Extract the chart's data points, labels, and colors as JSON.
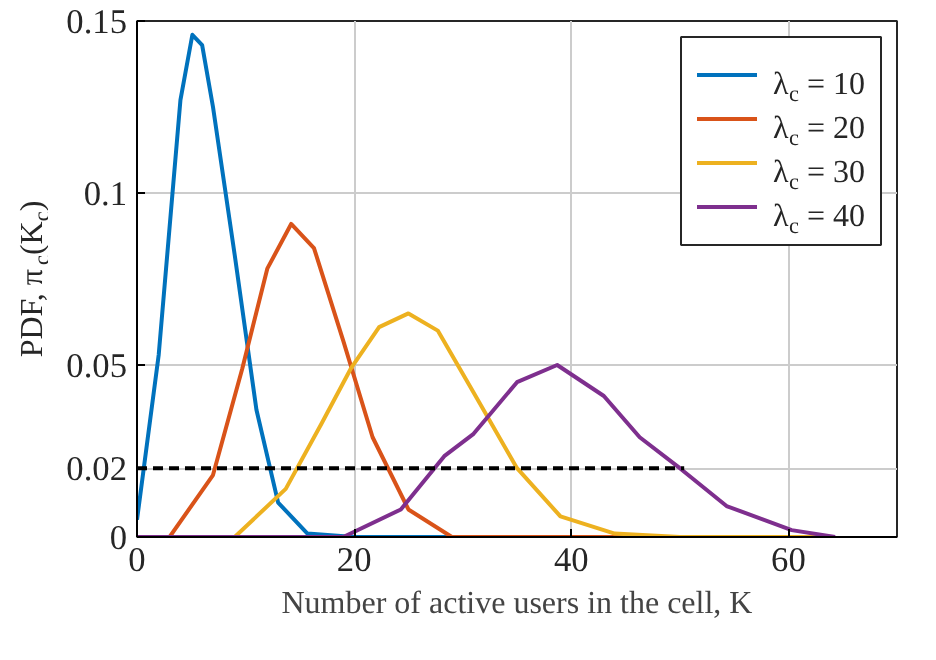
{
  "chart_data": {
    "type": "line",
    "xlabel": "Number of active users in the cell, K",
    "ylabel": "PDF, π$_{c}$(K$_{c}$)",
    "xlim": [
      0,
      70
    ],
    "ylim": [
      0,
      0.15
    ],
    "xticks": [
      0,
      20,
      40,
      60
    ],
    "yticks": [
      0,
      0.02,
      0.05,
      0.1,
      0.15
    ],
    "grid": true,
    "legend": "top right",
    "line_style": "solid",
    "marker": "none",
    "series": [
      {
        "name": "λ$_{c}$ = 10",
        "color": "#0072bd",
        "x": [
          0,
          2,
          4,
          5.1,
          6,
          7,
          9,
          11,
          13,
          15.7,
          20,
          30,
          64
        ],
        "values": [
          0.005,
          0.053,
          0.127,
          0.146,
          0.143,
          0.125,
          0.082,
          0.037,
          0.01,
          0.001,
          0,
          0,
          0
        ]
      },
      {
        "name": "λ$_{c}$ = 20",
        "color": "#d95319",
        "x": [
          0,
          3,
          7,
          9.7,
          12,
          14.2,
          16.3,
          19,
          21.7,
          25,
          29,
          40,
          64
        ],
        "values": [
          0,
          0,
          0.018,
          0.049,
          0.078,
          0.091,
          0.084,
          0.057,
          0.029,
          0.008,
          0,
          0,
          0
        ]
      },
      {
        "name": "λ$_{c}$ = 30",
        "color": "#edb120",
        "x": [
          0,
          9,
          13.7,
          17,
          19.7,
          22.3,
          25,
          27.7,
          31,
          35,
          39,
          44,
          50,
          64
        ],
        "values": [
          0,
          0,
          0.014,
          0.033,
          0.049,
          0.061,
          0.065,
          0.06,
          0.042,
          0.02,
          0.006,
          0.001,
          0,
          0
        ]
      },
      {
        "name": "λ$_{c}$ = 40",
        "color": "#7e2f8e",
        "x": [
          0,
          19,
          24.3,
          28.3,
          31,
          35,
          38.7,
          43,
          46.3,
          50,
          54.3,
          60.3,
          64.3
        ],
        "values": [
          0,
          0,
          0.008,
          0.0235,
          0.03,
          0.045,
          0.05,
          0.041,
          0.029,
          0.02,
          0.009,
          0.002,
          0
        ]
      },
      {
        "color": "#000000",
        "line_style": "dashed",
        "x": [
          0,
          50.4
        ],
        "values": [
          0.02,
          0.02
        ]
      }
    ]
  }
}
